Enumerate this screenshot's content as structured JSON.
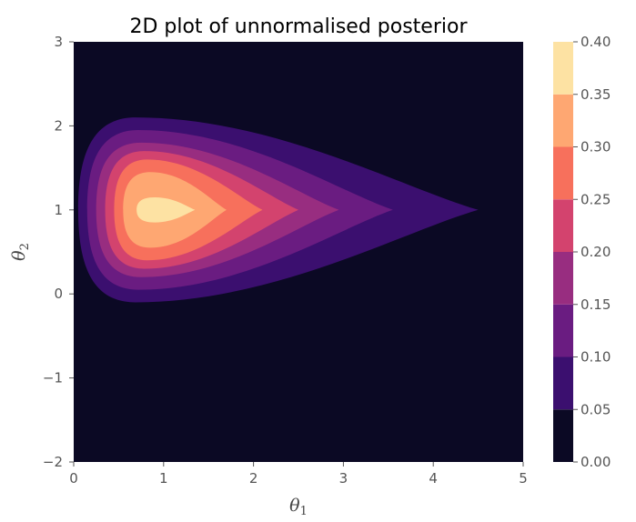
{
  "chart_data": {
    "type": "contourf",
    "title": "2D plot of unnormalised posterior",
    "xlabel": {
      "symbol": "θ",
      "subscript": "1"
    },
    "ylabel": {
      "symbol": "θ",
      "subscript": "2"
    },
    "xlim": [
      0,
      5
    ],
    "ylim": [
      -2,
      3
    ],
    "xticks": [
      "0",
      "1",
      "2",
      "3",
      "4",
      "5"
    ],
    "yticks": [
      "−2",
      "−1",
      "0",
      "1",
      "2",
      "3"
    ],
    "grid": false,
    "colormap": "magma",
    "levels": [
      0.0,
      0.05,
      0.1,
      0.15,
      0.2,
      0.25,
      0.3,
      0.35,
      0.4
    ],
    "colorbar_ticks": [
      "0.00",
      "0.05",
      "0.10",
      "0.15",
      "0.20",
      "0.25",
      "0.30",
      "0.35",
      "0.40"
    ],
    "band_colors": [
      "#0b0924",
      "#3b0f6f",
      "#6a1c81",
      "#982d80",
      "#d3436e",
      "#f7705c",
      "#fea772",
      "#fde2a3"
    ],
    "peak": {
      "theta1": 1.0,
      "theta2": 1.0
    },
    "contours": [
      {
        "level": 0.05,
        "theta1_range": [
          0.05,
          4.5
        ],
        "theta2_range": [
          -0.1,
          2.1
        ]
      },
      {
        "level": 0.1,
        "theta1_range": [
          0.15,
          3.55
        ],
        "theta2_range": [
          0.05,
          1.95
        ]
      },
      {
        "level": 0.15,
        "theta1_range": [
          0.25,
          2.95
        ],
        "theta2_range": [
          0.2,
          1.8
        ]
      },
      {
        "level": 0.2,
        "theta1_range": [
          0.35,
          2.5
        ],
        "theta2_range": [
          0.3,
          1.7
        ]
      },
      {
        "level": 0.25,
        "theta1_range": [
          0.45,
          2.1
        ],
        "theta2_range": [
          0.4,
          1.6
        ]
      },
      {
        "level": 0.3,
        "theta1_range": [
          0.55,
          1.7
        ],
        "theta2_range": [
          0.55,
          1.45
        ]
      },
      {
        "level": 0.35,
        "theta1_range": [
          0.7,
          1.35
        ],
        "theta2_range": [
          0.85,
          1.15
        ]
      }
    ]
  }
}
